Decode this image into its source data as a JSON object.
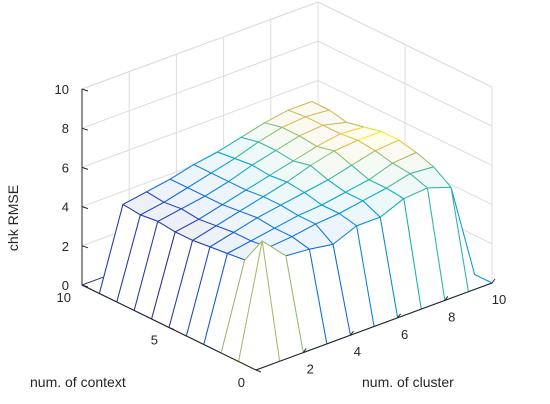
{
  "chart_data": {
    "type": "surface",
    "title": "",
    "xlabel": "num. of cluster",
    "ylabel": "num. of context",
    "zlabel": "chk RMSE",
    "x_ticks": [
      "2",
      "4",
      "6",
      "8",
      "10"
    ],
    "y_ticks": [
      "0",
      "5",
      "10"
    ],
    "z_ticks": [
      "0",
      "2",
      "4",
      "6",
      "8",
      "10"
    ],
    "xlim": [
      0,
      10
    ],
    "ylim": [
      0,
      10
    ],
    "zlim": [
      0,
      10
    ],
    "x": [
      1,
      2,
      3,
      4,
      5,
      6,
      7,
      8,
      9
    ],
    "y": [
      1,
      2,
      3,
      4,
      5,
      6,
      7,
      8,
      9
    ],
    "z": [
      [
        5.7,
        4.5,
        4.4,
        4.2,
        4.7,
        4.7,
        5.2,
        5.3,
        4.9
      ],
      [
        4.3,
        4.5,
        4.6,
        4.8,
        4.9,
        5.1,
        5.3,
        5.6,
        5.5
      ],
      [
        4.2,
        4.4,
        4.6,
        4.8,
        4.9,
        5.1,
        5.3,
        5.7,
        5.8
      ],
      [
        4.1,
        4.4,
        4.7,
        4.9,
        5.1,
        5.3,
        5.6,
        5.9,
        6.0
      ],
      [
        4.0,
        4.3,
        4.6,
        4.9,
        5.2,
        5.6,
        5.9,
        6.0,
        6.0
      ],
      [
        4.0,
        4.2,
        4.5,
        4.8,
        5.1,
        5.4,
        5.7,
        5.9,
        5.8
      ],
      [
        4.1,
        4.3,
        4.5,
        4.8,
        5.2,
        5.5,
        5.8,
        5.9,
        5.6
      ],
      [
        4.0,
        4.2,
        4.5,
        4.8,
        5.1,
        5.5,
        5.8,
        5.9,
        5.8
      ],
      [
        4.1,
        4.3,
        4.5,
        4.8,
        5.0,
        5.3,
        5.6,
        5.8,
        5.8
      ]
    ],
    "colormap": "parula",
    "grid": true
  },
  "colors": {
    "grid": "#dcdcdc",
    "axis": "#262626",
    "face": "#ffffff"
  }
}
